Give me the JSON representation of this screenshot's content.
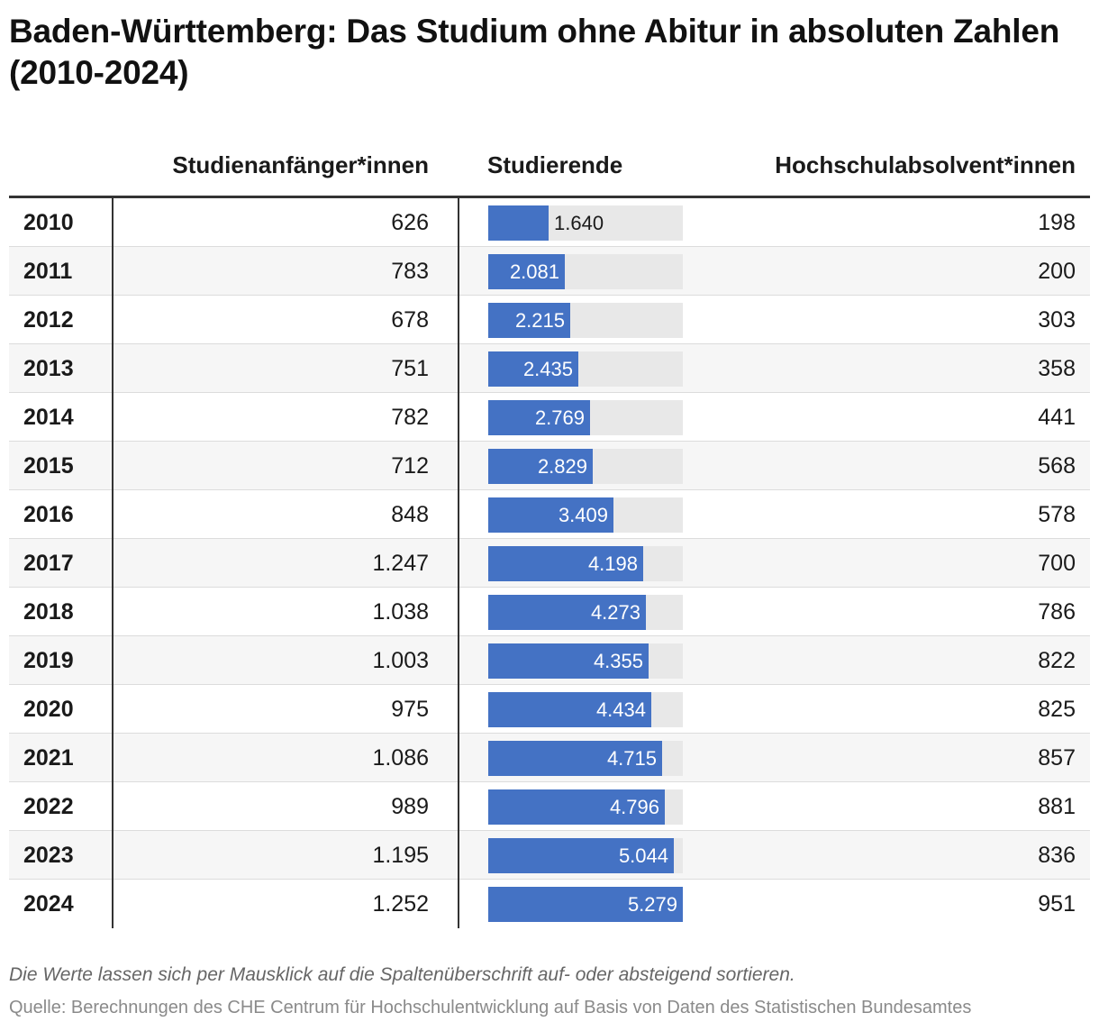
{
  "title": "Baden-Württemberg: Das Studium ohne Abitur in absoluten Zahlen (2010-2024)",
  "columns": {
    "starters": "Studienanfänger*innen",
    "students": "Studierende",
    "graduates": "Hochschulabsolvent*innen"
  },
  "colors": {
    "bar": "#4472c4",
    "track": "#e8e8e8",
    "alt_row": "#f6f6f6"
  },
  "chart_data": {
    "type": "table",
    "title": "Baden-Württemberg: Das Studium ohne Abitur in absoluten Zahlen (2010-2024)",
    "bar_column": "Studierende",
    "bar_max": 5279,
    "rows": [
      {
        "year": "2010",
        "starters": "626",
        "students": "1.640",
        "students_value": 1640,
        "graduates": "198"
      },
      {
        "year": "2011",
        "starters": "783",
        "students": "2.081",
        "students_value": 2081,
        "graduates": "200"
      },
      {
        "year": "2012",
        "starters": "678",
        "students": "2.215",
        "students_value": 2215,
        "graduates": "303"
      },
      {
        "year": "2013",
        "starters": "751",
        "students": "2.435",
        "students_value": 2435,
        "graduates": "358"
      },
      {
        "year": "2014",
        "starters": "782",
        "students": "2.769",
        "students_value": 2769,
        "graduates": "441"
      },
      {
        "year": "2015",
        "starters": "712",
        "students": "2.829",
        "students_value": 2829,
        "graduates": "568"
      },
      {
        "year": "2016",
        "starters": "848",
        "students": "3.409",
        "students_value": 3409,
        "graduates": "578"
      },
      {
        "year": "2017",
        "starters": "1.247",
        "students": "4.198",
        "students_value": 4198,
        "graduates": "700"
      },
      {
        "year": "2018",
        "starters": "1.038",
        "students": "4.273",
        "students_value": 4273,
        "graduates": "786"
      },
      {
        "year": "2019",
        "starters": "1.003",
        "students": "4.355",
        "students_value": 4355,
        "graduates": "822"
      },
      {
        "year": "2020",
        "starters": "975",
        "students": "4.434",
        "students_value": 4434,
        "graduates": "825"
      },
      {
        "year": "2021",
        "starters": "1.086",
        "students": "4.715",
        "students_value": 4715,
        "graduates": "857"
      },
      {
        "year": "2022",
        "starters": "989",
        "students": "4.796",
        "students_value": 4796,
        "graduates": "881"
      },
      {
        "year": "2023",
        "starters": "1.195",
        "students": "5.044",
        "students_value": 5044,
        "graduates": "836"
      },
      {
        "year": "2024",
        "starters": "1.252",
        "students": "5.279",
        "students_value": 5279,
        "graduates": "951"
      }
    ]
  },
  "footer": {
    "note": "Die Werte lassen sich per Mausklick auf die Spaltenüberschrift auf- oder absteigend sortieren.",
    "source": "Quelle: Berechnungen des CHE Centrum für Hochschulentwicklung auf Basis von Daten des Statistischen Bundesamtes"
  }
}
